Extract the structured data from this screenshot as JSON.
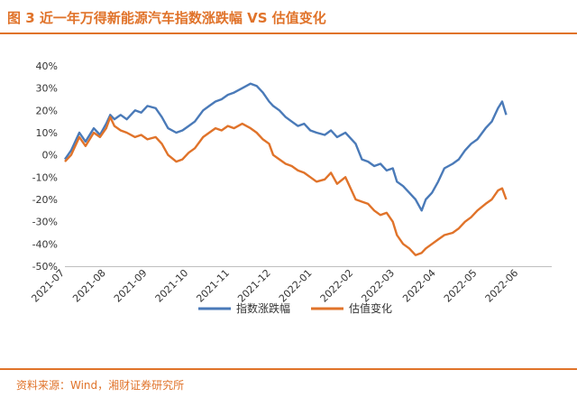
{
  "title": "图 3  近一年万得新能源汽车指数涨跌幅 VS 估值变化",
  "source": "资料来源：Wind，湘财证券研究所",
  "colors": {
    "index": "#4a7ab8",
    "valuation": "#e0732a",
    "accent": "#e0732a"
  },
  "chart_data": {
    "type": "line",
    "title": "",
    "xlabel": "",
    "ylabel": "",
    "ylim": [
      -50,
      40
    ],
    "yticks": [
      "40%",
      "30%",
      "20%",
      "10%",
      "0%",
      "-10%",
      "-20%",
      "-30%",
      "-40%",
      "-50%"
    ],
    "ytick_values": [
      40,
      30,
      20,
      10,
      0,
      -10,
      -20,
      -30,
      -40,
      -50
    ],
    "x_categories": [
      "2021-07",
      "2021-08",
      "2021-09",
      "2021-10",
      "2021-11",
      "2021-12",
      "2022-01",
      "2022-02",
      "2022-03",
      "2022-04",
      "2022-05",
      "2022-06"
    ],
    "legend_position": "bottom",
    "grid": false,
    "series": [
      {
        "name": "指数涨跌幅",
        "color": "#4a7ab8",
        "values": [
          [
            0.0,
            -2
          ],
          [
            0.15,
            2
          ],
          [
            0.35,
            10
          ],
          [
            0.5,
            6
          ],
          [
            0.7,
            12
          ],
          [
            0.85,
            9
          ],
          [
            1.0,
            14
          ],
          [
            1.1,
            18
          ],
          [
            1.2,
            16
          ],
          [
            1.35,
            18
          ],
          [
            1.5,
            16
          ],
          [
            1.7,
            20
          ],
          [
            1.85,
            19
          ],
          [
            2.0,
            22
          ],
          [
            2.2,
            21
          ],
          [
            2.35,
            17
          ],
          [
            2.5,
            12
          ],
          [
            2.7,
            10
          ],
          [
            2.85,
            11
          ],
          [
            3.0,
            13
          ],
          [
            3.15,
            15
          ],
          [
            3.35,
            20
          ],
          [
            3.5,
            22
          ],
          [
            3.65,
            24
          ],
          [
            3.8,
            25
          ],
          [
            3.95,
            27
          ],
          [
            4.1,
            28
          ],
          [
            4.3,
            30
          ],
          [
            4.5,
            32
          ],
          [
            4.65,
            31
          ],
          [
            4.8,
            28
          ],
          [
            4.95,
            24
          ],
          [
            5.05,
            22
          ],
          [
            5.2,
            20
          ],
          [
            5.35,
            17
          ],
          [
            5.5,
            15
          ],
          [
            5.65,
            13
          ],
          [
            5.8,
            14
          ],
          [
            5.95,
            11
          ],
          [
            6.1,
            10
          ],
          [
            6.3,
            9
          ],
          [
            6.45,
            11
          ],
          [
            6.6,
            8
          ],
          [
            6.8,
            10
          ],
          [
            6.95,
            7
          ],
          [
            7.05,
            5
          ],
          [
            7.2,
            -2
          ],
          [
            7.35,
            -3
          ],
          [
            7.5,
            -5
          ],
          [
            7.65,
            -4
          ],
          [
            7.8,
            -7
          ],
          [
            7.95,
            -6
          ],
          [
            8.05,
            -12
          ],
          [
            8.2,
            -14
          ],
          [
            8.35,
            -17
          ],
          [
            8.5,
            -20
          ],
          [
            8.65,
            -25
          ],
          [
            8.75,
            -20
          ],
          [
            8.9,
            -17
          ],
          [
            9.05,
            -12
          ],
          [
            9.2,
            -6
          ],
          [
            9.4,
            -4
          ],
          [
            9.55,
            -2
          ],
          [
            9.7,
            2
          ],
          [
            9.85,
            5
          ],
          [
            10.0,
            7
          ],
          [
            10.2,
            12
          ],
          [
            10.35,
            15
          ],
          [
            10.5,
            21
          ],
          [
            10.6,
            24
          ],
          [
            10.7,
            18
          ]
        ]
      },
      {
        "name": "估值变化",
        "color": "#e0732a",
        "values": [
          [
            0.0,
            -3
          ],
          [
            0.15,
            0
          ],
          [
            0.35,
            8
          ],
          [
            0.5,
            4
          ],
          [
            0.7,
            10
          ],
          [
            0.85,
            8
          ],
          [
            1.0,
            12
          ],
          [
            1.1,
            17
          ],
          [
            1.2,
            13
          ],
          [
            1.35,
            11
          ],
          [
            1.5,
            10
          ],
          [
            1.7,
            8
          ],
          [
            1.85,
            9
          ],
          [
            2.0,
            7
          ],
          [
            2.2,
            8
          ],
          [
            2.35,
            5
          ],
          [
            2.5,
            0
          ],
          [
            2.7,
            -3
          ],
          [
            2.85,
            -2
          ],
          [
            3.0,
            1
          ],
          [
            3.15,
            3
          ],
          [
            3.35,
            8
          ],
          [
            3.5,
            10
          ],
          [
            3.65,
            12
          ],
          [
            3.8,
            11
          ],
          [
            3.95,
            13
          ],
          [
            4.1,
            12
          ],
          [
            4.3,
            14
          ],
          [
            4.5,
            12
          ],
          [
            4.65,
            10
          ],
          [
            4.8,
            7
          ],
          [
            4.95,
            5
          ],
          [
            5.05,
            0
          ],
          [
            5.2,
            -2
          ],
          [
            5.35,
            -4
          ],
          [
            5.5,
            -5
          ],
          [
            5.65,
            -7
          ],
          [
            5.8,
            -8
          ],
          [
            5.95,
            -10
          ],
          [
            6.1,
            -12
          ],
          [
            6.3,
            -11
          ],
          [
            6.45,
            -8
          ],
          [
            6.6,
            -13
          ],
          [
            6.8,
            -10
          ],
          [
            6.95,
            -16
          ],
          [
            7.05,
            -20
          ],
          [
            7.2,
            -21
          ],
          [
            7.35,
            -22
          ],
          [
            7.5,
            -25
          ],
          [
            7.65,
            -27
          ],
          [
            7.8,
            -26
          ],
          [
            7.95,
            -30
          ],
          [
            8.05,
            -36
          ],
          [
            8.2,
            -40
          ],
          [
            8.35,
            -42
          ],
          [
            8.5,
            -45
          ],
          [
            8.65,
            -44
          ],
          [
            8.75,
            -42
          ],
          [
            8.9,
            -40
          ],
          [
            9.05,
            -38
          ],
          [
            9.2,
            -36
          ],
          [
            9.4,
            -35
          ],
          [
            9.55,
            -33
          ],
          [
            9.7,
            -30
          ],
          [
            9.85,
            -28
          ],
          [
            10.0,
            -25
          ],
          [
            10.2,
            -22
          ],
          [
            10.35,
            -20
          ],
          [
            10.5,
            -16
          ],
          [
            10.6,
            -15
          ],
          [
            10.7,
            -20
          ]
        ]
      }
    ]
  }
}
